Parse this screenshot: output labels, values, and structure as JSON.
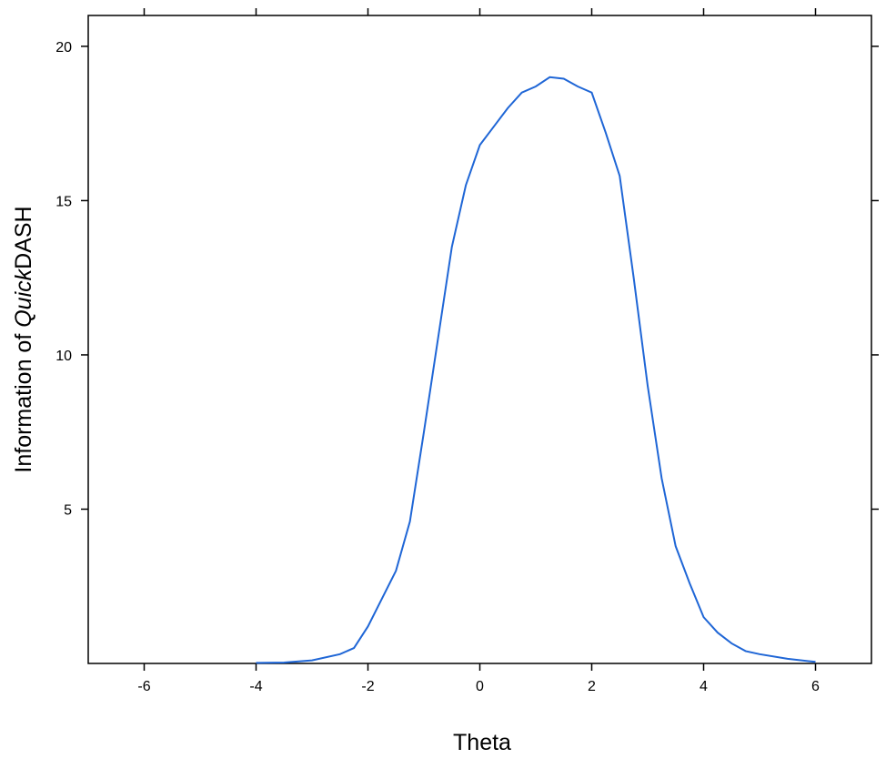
{
  "chart_data": {
    "type": "line",
    "xlabel": "Theta",
    "ylabel_parts": [
      "Information of ",
      "Quick",
      "DASH"
    ],
    "x": [
      -4,
      -3.5,
      -3,
      -2.5,
      -2.25,
      -2,
      -1.75,
      -1.5,
      -1.25,
      -1,
      -0.75,
      -0.5,
      -0.25,
      0,
      0.25,
      0.5,
      0.75,
      1,
      1.25,
      1.5,
      1.75,
      2,
      2.25,
      2.5,
      2.75,
      3,
      3.25,
      3.5,
      3.75,
      4,
      4.25,
      4.5,
      4.75,
      5,
      5.5,
      6
    ],
    "series": [
      {
        "name": "Information",
        "color": "#1f66d6",
        "values": [
          0.02,
          0.03,
          0.1,
          0.3,
          0.5,
          1.2,
          2.1,
          3.0,
          4.6,
          7.5,
          10.5,
          13.5,
          15.5,
          16.8,
          17.4,
          18.0,
          18.5,
          18.7,
          19.0,
          18.95,
          18.7,
          18.5,
          17.2,
          15.8,
          12.5,
          9.0,
          6.0,
          3.8,
          2.6,
          1.5,
          1.0,
          0.65,
          0.4,
          0.3,
          0.15,
          0.05
        ]
      }
    ],
    "xlim": [
      -7,
      7
    ],
    "ylim": [
      0,
      21
    ],
    "xticks": [
      -6,
      -4,
      -2,
      0,
      2,
      4,
      6
    ],
    "yticks": [
      5,
      10,
      15,
      20
    ]
  }
}
